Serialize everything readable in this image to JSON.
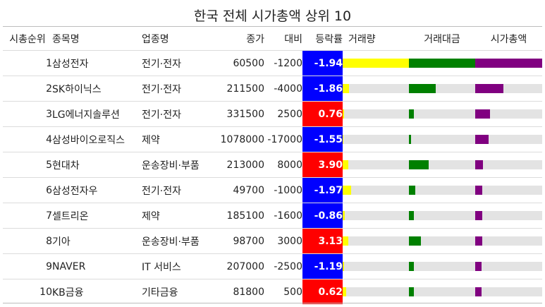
{
  "title": "한국 전체 시가총액 상위 10",
  "columns": [
    "시총순위",
    "종목명",
    "업종명",
    "종가",
    "대비",
    "등락률",
    "거래량",
    "거래대금",
    "시가총액"
  ],
  "colors": {
    "up": "#ff0000",
    "down": "#0000ff",
    "volume": "#ffff00",
    "amount": "#008000",
    "marketcap": "#800080",
    "track": "#e3e3e3"
  },
  "chart_data": {
    "type": "table",
    "title": "한국 전체 시가총액 상위 10",
    "columns": [
      "시총순위",
      "종목명",
      "업종명",
      "종가",
      "대비",
      "등락률",
      "거래량",
      "거래대금",
      "시가총액"
    ],
    "rows": [
      {
        "rank": "1",
        "name": "삼성전자",
        "sector": "전기·전자",
        "close": "60500",
        "diff": "-1200",
        "pct": "-1.94",
        "volume_ratio": 1.0,
        "amount_ratio": 1.0,
        "mcap_ratio": 1.0
      },
      {
        "rank": "2",
        "name": "SK하이닉스",
        "sector": "전기·전자",
        "close": "211500",
        "diff": "-4000",
        "pct": "-1.86",
        "volume_ratio": 0.1,
        "amount_ratio": 0.4,
        "mcap_ratio": 0.42
      },
      {
        "rank": "3",
        "name": "LG에너지솔루션",
        "sector": "전기·전자",
        "close": "331500",
        "diff": "2500",
        "pct": "0.76",
        "volume_ratio": 0.02,
        "amount_ratio": 0.07,
        "mcap_ratio": 0.22
      },
      {
        "rank": "4",
        "name": "삼성바이오로직스",
        "sector": "제약",
        "close": "1078000",
        "diff": "-17000",
        "pct": "-1.55",
        "volume_ratio": 0.01,
        "amount_ratio": 0.03,
        "mcap_ratio": 0.2
      },
      {
        "rank": "5",
        "name": "현대차",
        "sector": "운송장비·부품",
        "close": "213000",
        "diff": "8000",
        "pct": "3.90",
        "volume_ratio": 0.08,
        "amount_ratio": 0.3,
        "mcap_ratio": 0.12
      },
      {
        "rank": "6",
        "name": "삼성전자우",
        "sector": "전기·전자",
        "close": "49700",
        "diff": "-1000",
        "pct": "-1.97",
        "volume_ratio": 0.13,
        "amount_ratio": 0.1,
        "mcap_ratio": 0.11
      },
      {
        "rank": "7",
        "name": "셀트리온",
        "sector": "제약",
        "close": "185100",
        "diff": "-1600",
        "pct": "-0.86",
        "volume_ratio": 0.03,
        "amount_ratio": 0.07,
        "mcap_ratio": 0.11
      },
      {
        "rank": "8",
        "name": "기아",
        "sector": "운송장비·부품",
        "close": "98700",
        "diff": "3000",
        "pct": "3.13",
        "volume_ratio": 0.08,
        "amount_ratio": 0.18,
        "mcap_ratio": 0.1
      },
      {
        "rank": "9",
        "name": "NAVER",
        "sector": "IT 서비스",
        "close": "207000",
        "diff": "-2500",
        "pct": "-1.19",
        "volume_ratio": 0.02,
        "amount_ratio": 0.07,
        "mcap_ratio": 0.09
      },
      {
        "rank": "10",
        "name": "KB금융",
        "sector": "기타금융",
        "close": "81800",
        "diff": "500",
        "pct": "0.62",
        "volume_ratio": 0.05,
        "amount_ratio": 0.07,
        "mcap_ratio": 0.09
      }
    ]
  }
}
